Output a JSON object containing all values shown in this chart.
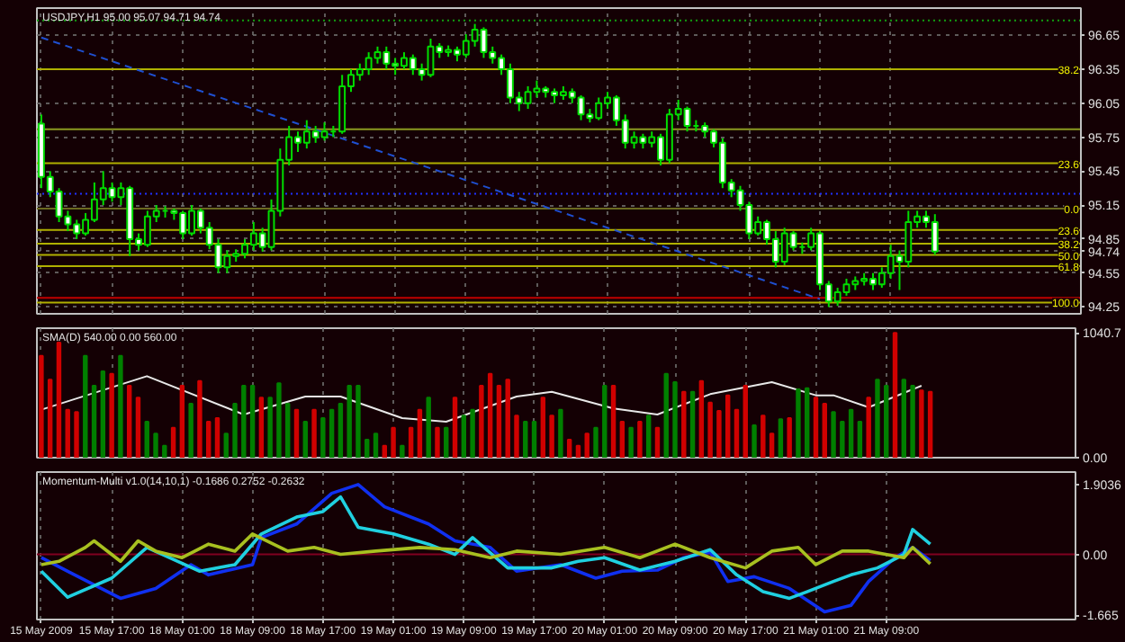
{
  "chart_data": [
    {
      "type": "candlestick",
      "title": "USDJPY,H1  95.00 95.07 94.71 94.74",
      "tick_labels": "y",
      "grid": true,
      "categories": [
        null,
        null,
        null,
        null,
        null,
        null,
        null,
        null,
        null,
        null,
        null,
        null,
        null,
        null,
        null,
        null,
        null,
        null,
        null,
        null,
        null,
        null,
        null,
        null,
        null,
        null,
        null,
        null,
        null,
        null,
        null,
        null,
        null,
        null,
        null,
        null,
        null,
        null,
        null,
        null,
        null,
        null,
        null,
        null,
        null,
        null,
        null,
        null,
        null,
        null,
        null,
        null,
        null,
        null,
        null,
        null,
        null,
        null,
        null,
        null,
        null,
        null,
        null,
        null,
        null,
        null,
        null,
        null,
        null,
        null,
        null,
        null,
        null,
        null,
        null,
        null,
        null,
        null,
        null,
        null,
        null,
        null,
        null,
        null,
        null,
        null,
        null,
        null,
        null,
        null,
        null,
        null,
        null,
        null,
        null,
        null,
        null,
        null,
        null,
        null,
        null,
        null,
        null,
        null,
        null,
        null,
        null,
        null,
        null,
        null,
        null,
        null,
        null,
        null,
        null,
        null,
        null,
        null
      ],
      "ohlc": [
        [
          95.87,
          95.95,
          95.3,
          95.4
        ],
        [
          95.4,
          95.45,
          95.22,
          95.27
        ],
        [
          95.27,
          95.3,
          95.0,
          95.05
        ],
        [
          95.05,
          95.1,
          94.92,
          94.98
        ],
        [
          94.98,
          95.02,
          94.85,
          94.9
        ],
        [
          94.9,
          95.08,
          94.88,
          95.02
        ],
        [
          95.02,
          95.35,
          95.0,
          95.2
        ],
        [
          95.2,
          95.45,
          95.15,
          95.3
        ],
        [
          95.3,
          95.35,
          95.18,
          95.22
        ],
        [
          95.22,
          95.35,
          95.15,
          95.3
        ],
        [
          95.3,
          95.32,
          94.7,
          94.85
        ],
        [
          94.85,
          94.9,
          94.75,
          94.8
        ],
        [
          94.8,
          95.1,
          94.78,
          95.05
        ],
        [
          95.05,
          95.15,
          95.0,
          95.1
        ],
        [
          95.1,
          95.14,
          95.04,
          95.1
        ],
        [
          95.1,
          95.12,
          95.02,
          95.08
        ],
        [
          95.08,
          95.1,
          94.85,
          94.9
        ],
        [
          94.9,
          95.15,
          94.88,
          95.1
        ],
        [
          95.1,
          95.12,
          94.9,
          94.95
        ],
        [
          94.95,
          95.0,
          94.76,
          94.8
        ],
        [
          94.8,
          94.85,
          94.55,
          94.6
        ],
        [
          94.6,
          94.75,
          94.55,
          94.7
        ],
        [
          94.7,
          94.76,
          94.65,
          94.72
        ],
        [
          94.72,
          94.85,
          94.68,
          94.8
        ],
        [
          94.8,
          95.0,
          94.75,
          94.9
        ],
        [
          94.9,
          94.95,
          94.74,
          94.78
        ],
        [
          94.78,
          95.2,
          94.75,
          95.1
        ],
        [
          95.1,
          95.65,
          95.05,
          95.55
        ],
        [
          95.55,
          95.85,
          95.5,
          95.75
        ],
        [
          95.75,
          95.8,
          95.62,
          95.7
        ],
        [
          95.7,
          95.9,
          95.65,
          95.8
        ],
        [
          95.8,
          95.85,
          95.7,
          95.75
        ],
        [
          95.75,
          95.88,
          95.72,
          95.8
        ],
        [
          95.8,
          95.85,
          95.75,
          95.8
        ],
        [
          95.8,
          96.3,
          95.78,
          96.2
        ],
        [
          96.2,
          96.35,
          96.15,
          96.3
        ],
        [
          96.3,
          96.4,
          96.25,
          96.35
        ],
        [
          96.35,
          96.5,
          96.3,
          96.45
        ],
        [
          96.45,
          96.55,
          96.4,
          96.5
        ],
        [
          96.5,
          96.55,
          96.35,
          96.4
        ],
        [
          96.4,
          96.45,
          96.3,
          96.38
        ],
        [
          96.38,
          96.5,
          96.35,
          96.45
        ],
        [
          96.45,
          96.48,
          96.3,
          96.35
        ],
        [
          96.35,
          96.4,
          96.25,
          96.3
        ],
        [
          96.3,
          96.62,
          96.28,
          96.55
        ],
        [
          96.55,
          96.58,
          96.45,
          96.5
        ],
        [
          96.5,
          96.56,
          96.46,
          96.52
        ],
        [
          96.52,
          96.55,
          96.42,
          96.48
        ],
        [
          96.48,
          96.66,
          96.45,
          96.6
        ],
        [
          96.6,
          96.75,
          96.55,
          96.7
        ],
        [
          96.7,
          96.72,
          96.45,
          96.5
        ],
        [
          96.5,
          96.55,
          96.4,
          96.45
        ],
        [
          96.45,
          96.48,
          96.3,
          96.35
        ],
        [
          96.35,
          96.4,
          96.05,
          96.1
        ],
        [
          96.1,
          96.15,
          95.98,
          96.05
        ],
        [
          96.05,
          96.2,
          96.0,
          96.15
        ],
        [
          96.15,
          96.25,
          96.1,
          96.18
        ],
        [
          96.18,
          96.2,
          96.1,
          96.15
        ],
        [
          96.15,
          96.18,
          96.05,
          96.12
        ],
        [
          96.12,
          96.2,
          96.08,
          96.15
        ],
        [
          96.15,
          96.18,
          96.05,
          96.1
        ],
        [
          96.1,
          96.12,
          95.9,
          95.95
        ],
        [
          95.95,
          96.0,
          95.88,
          95.92
        ],
        [
          95.92,
          96.1,
          95.9,
          96.05
        ],
        [
          96.05,
          96.15,
          96.0,
          96.1
        ],
        [
          96.1,
          96.12,
          95.85,
          95.9
        ],
        [
          95.9,
          95.95,
          95.65,
          95.7
        ],
        [
          95.7,
          95.8,
          95.65,
          95.75
        ],
        [
          95.75,
          95.78,
          95.65,
          95.7
        ],
        [
          95.7,
          95.8,
          95.66,
          95.75
        ],
        [
          95.75,
          95.78,
          95.5,
          95.55
        ],
        [
          95.55,
          96.0,
          95.52,
          95.95
        ],
        [
          95.95,
          96.08,
          95.9,
          96.0
        ],
        [
          96.0,
          96.02,
          95.8,
          95.85
        ],
        [
          95.85,
          95.9,
          95.8,
          95.85
        ],
        [
          95.85,
          95.88,
          95.75,
          95.8
        ],
        [
          95.8,
          95.82,
          95.66,
          95.7
        ],
        [
          95.7,
          95.74,
          95.3,
          95.35
        ],
        [
          95.35,
          95.38,
          95.22,
          95.28
        ],
        [
          95.28,
          95.32,
          95.1,
          95.15
        ],
        [
          95.15,
          95.18,
          94.85,
          94.9
        ],
        [
          94.9,
          95.05,
          94.88,
          95.0
        ],
        [
          95.0,
          95.02,
          94.8,
          94.85
        ],
        [
          94.85,
          94.92,
          94.6,
          94.65
        ],
        [
          94.65,
          94.95,
          94.62,
          94.9
        ],
        [
          94.9,
          94.92,
          94.75,
          94.78
        ],
        [
          94.78,
          94.82,
          94.72,
          94.78
        ],
        [
          94.78,
          94.95,
          94.75,
          94.9
        ],
        [
          94.9,
          94.92,
          94.4,
          94.45
        ],
        [
          94.45,
          94.48,
          94.25,
          94.3
        ],
        [
          94.3,
          94.42,
          94.26,
          94.38
        ],
        [
          94.38,
          94.5,
          94.35,
          94.45
        ],
        [
          94.45,
          94.52,
          94.4,
          94.48
        ],
        [
          94.48,
          94.55,
          94.44,
          94.5
        ],
        [
          94.5,
          94.55,
          94.4,
          94.45
        ],
        [
          94.45,
          94.6,
          94.42,
          94.55
        ],
        [
          94.55,
          94.8,
          94.5,
          94.7
        ],
        [
          94.7,
          94.75,
          94.4,
          94.65
        ],
        [
          94.65,
          95.1,
          94.6,
          95.0
        ],
        [
          95.0,
          95.1,
          94.95,
          95.05
        ],
        [
          95.05,
          95.1,
          94.95,
          95.0
        ],
        [
          95.0,
          95.07,
          94.71,
          94.74
        ],
        null,
        null,
        null,
        null,
        null,
        null,
        null,
        null,
        null,
        null,
        null,
        null,
        null,
        null,
        null,
        null
      ],
      "series": [
        {
          "type": "line",
          "values": [
            96.63,
            null,
            null,
            null,
            null,
            null,
            null,
            null,
            null,
            null,
            null,
            null,
            null,
            null,
            null,
            null,
            null,
            null,
            null,
            null,
            null,
            null,
            null,
            null,
            null,
            null,
            null,
            null,
            null,
            null,
            null,
            null,
            null,
            null,
            null,
            null,
            null,
            null,
            null,
            null,
            null,
            null,
            null,
            null,
            null,
            null,
            null,
            null,
            null,
            null,
            null,
            null,
            null,
            null,
            null,
            null,
            null,
            null,
            null,
            null,
            null,
            null,
            null,
            null,
            null,
            null,
            null,
            null,
            null,
            null,
            null,
            null,
            null,
            null,
            null,
            null,
            null,
            null,
            null,
            null,
            null,
            null,
            null,
            null,
            null,
            null,
            null,
            null,
            94.32,
            null,
            null,
            null,
            null,
            null,
            null,
            null,
            null,
            null,
            null,
            null,
            null,
            null,
            null,
            null,
            null,
            null,
            null,
            null,
            null,
            null,
            null,
            null,
            null,
            null,
            null,
            null,
            null,
            null
          ],
          "color": "#1f4fd0",
          "line_style": "dashed"
        }
      ],
      "ref_lines": [
        {
          "axis": "y",
          "value": 96.78,
          "color": "#10a010",
          "line_style": "dotted"
        },
        {
          "axis": "y",
          "value": 96.35,
          "color": "#b0b000"
        },
        {
          "axis": "y",
          "value": 95.82,
          "color": "#8a9a20"
        },
        {
          "axis": "y",
          "value": 95.52,
          "color": "#b0b000"
        },
        {
          "axis": "y",
          "value": 95.25,
          "color": "#2030ff",
          "line_style": "dotted"
        },
        {
          "axis": "y",
          "value": 95.12,
          "color": "#6a6a20"
        },
        {
          "axis": "y",
          "value": 94.93,
          "color": "#b0b000"
        },
        {
          "axis": "y",
          "value": 94.81,
          "color": "#b0b000"
        },
        {
          "axis": "y",
          "value": 94.71,
          "color": "#b0b000"
        },
        {
          "axis": "y",
          "value": 94.61,
          "color": "#b0b000"
        },
        {
          "axis": "y",
          "value": 94.33,
          "color": "#c00000"
        },
        {
          "axis": "y",
          "value": 94.29,
          "color": "#b0b000"
        }
      ],
      "annotations": [
        {
          "text": "38.2",
          "y": 96.35
        },
        {
          "text": "23.6",
          "y": 95.52
        },
        {
          "text": "0.0",
          "y": 95.12
        },
        {
          "text": "23.6",
          "y": 94.93
        },
        {
          "text": "38.2",
          "y": 94.81
        },
        {
          "text": "50.0",
          "y": 94.71
        },
        {
          "text": "61.8",
          "y": 94.61
        },
        {
          "text": "100.0",
          "y": 94.29
        }
      ],
      "ylim": [
        94.19,
        96.89
      ],
      "yticks": [
        96.65,
        96.35,
        96.05,
        95.75,
        95.45,
        95.15,
        94.85,
        94.74,
        94.55,
        94.25
      ]
    },
    {
      "type": "bar",
      "title": "SMA(D) 540.00 0.00 560.00",
      "tick_labels": "y",
      "grid": "x",
      "categories": [
        null,
        null,
        null,
        null,
        null,
        null,
        null,
        null,
        null,
        null,
        null,
        null,
        null,
        null,
        null,
        null,
        null,
        null,
        null,
        null,
        null,
        null,
        null,
        null,
        null,
        null,
        null,
        null,
        null,
        null,
        null,
        null,
        null,
        null,
        null,
        null,
        null,
        null,
        null,
        null,
        null,
        null,
        null,
        null,
        null,
        null,
        null,
        null,
        null,
        null,
        null,
        null,
        null,
        null,
        null,
        null,
        null,
        null,
        null,
        null,
        null,
        null,
        null,
        null,
        null,
        null,
        null,
        null,
        null,
        null,
        null,
        null,
        null,
        null,
        null,
        null,
        null,
        null,
        null,
        null,
        null,
        null,
        null,
        null,
        null,
        null,
        null,
        null,
        null,
        null,
        null,
        null,
        null,
        null,
        null,
        null,
        null,
        null,
        null,
        null,
        null,
        null,
        null,
        null,
        null,
        null,
        null,
        null,
        null,
        null,
        null,
        null,
        null,
        null,
        null,
        null,
        null,
        null
      ],
      "values": [
        850,
        650,
        960,
        400,
        380,
        850,
        600,
        720,
        700,
        850,
        600,
        500,
        300,
        200,
        100,
        250,
        600,
        450,
        640,
        300,
        330,
        200,
        450,
        600,
        600,
        500,
        500,
        620,
        450,
        400,
        300,
        400,
        330,
        400,
        450,
        600,
        600,
        150,
        200,
        100,
        250,
        100,
        250,
        400,
        500,
        250,
        250,
        500,
        350,
        400,
        600,
        700,
        600,
        650,
        350,
        300,
        300,
        500,
        350,
        400,
        150,
        100,
        200,
        250,
        600,
        600,
        300,
        250,
        300,
        350,
        250,
        700,
        630,
        550,
        550,
        640,
        460,
        390,
        520,
        400,
        600,
        270,
        350,
        200,
        320,
        330,
        570,
        580,
        500,
        450,
        380,
        300,
        400,
        300,
        500,
        650,
        600,
        1040,
        650,
        600,
        560,
        550,
        null,
        null,
        null,
        null,
        null,
        null,
        null,
        null,
        null,
        null,
        null,
        null,
        null,
        null,
        null,
        null
      ],
      "colors": [
        "#d00000",
        "#d00000",
        "#d00000",
        "#d00000",
        "#d00000",
        "#008000",
        "#008000",
        "#008000",
        "#d00000",
        "#008000",
        "#d00000",
        "#d00000",
        "#008000",
        "#008000",
        "#008000",
        "#d00000",
        "#d00000",
        "#008000",
        "#d00000",
        "#d00000",
        "#d00000",
        "#008000",
        "#008000",
        "#008000",
        "#008000",
        "#d00000",
        "#008000",
        "#008000",
        "#008000",
        "#d00000",
        "#008000",
        "#d00000",
        "#008000",
        "#008000",
        "#008000",
        "#008000",
        "#008000",
        "#008000",
        "#008000",
        "#d00000",
        "#d00000",
        "#008000",
        "#d00000",
        "#d00000",
        "#008000",
        "#d00000",
        "#008000",
        "#d00000",
        "#008000",
        "#008000",
        "#d00000",
        "#d00000",
        "#d00000",
        "#d00000",
        "#d00000",
        "#008000",
        "#008000",
        "#d00000",
        "#d00000",
        "#008000",
        "#d00000",
        "#d00000",
        "#d00000",
        "#008000",
        "#008000",
        "#d00000",
        "#d00000",
        "#008000",
        "#d00000",
        "#008000",
        "#d00000",
        "#008000",
        "#008000",
        "#d00000",
        "#008000",
        "#d00000",
        "#d00000",
        "#d00000",
        "#d00000",
        "#d00000",
        "#d00000",
        "#008000",
        "#d00000",
        "#d00000",
        "#008000",
        "#d00000",
        "#008000",
        "#008000",
        "#d00000",
        "#d00000",
        "#008000",
        "#008000",
        "#008000",
        "#008000",
        "#d00000",
        "#008000",
        "#008000",
        "#d00000",
        "#008000",
        "#008000",
        "#d00000",
        "#d00000",
        null,
        null,
        null,
        null,
        null,
        null,
        null,
        null,
        null,
        null,
        null,
        null,
        null,
        null,
        null,
        null
      ],
      "series": [
        {
          "type": "line",
          "values": [
            400,
            null,
            null,
            null,
            null,
            null,
            null,
            null,
            null,
            null,
            null,
            null,
            680,
            null,
            null,
            null,
            null,
            null,
            null,
            null,
            null,
            null,
            null,
            360,
            null,
            null,
            null,
            null,
            null,
            null,
            510,
            null,
            null,
            null,
            510,
            null,
            null,
            null,
            null,
            null,
            null,
            330,
            null,
            null,
            null,
            null,
            300,
            null,
            null,
            null,
            null,
            null,
            null,
            null,
            510,
            null,
            null,
            null,
            550,
            null,
            null,
            null,
            null,
            null,
            null,
            410,
            null,
            null,
            null,
            null,
            360,
            null,
            null,
            null,
            null,
            null,
            530,
            null,
            null,
            null,
            null,
            null,
            null,
            630,
            null,
            null,
            null,
            null,
            520,
            null,
            520,
            null,
            null,
            null,
            420,
            null,
            null,
            null,
            null,
            null,
            600,
            null,
            null,
            null,
            null,
            null,
            null,
            null,
            null,
            null,
            null,
            null,
            null,
            null,
            null,
            null,
            null,
            null
          ],
          "color": "#e8e8e8"
        }
      ],
      "ylim": [
        0,
        1080
      ],
      "yticks": [
        {
          "value": 1040.7,
          "label": "1040.7"
        },
        {
          "value": 0,
          "label": "0.00"
        }
      ]
    },
    {
      "type": "line",
      "title": "Momentum-Multi v1.0(14,10,1) -0.1686 0.2752 -0.2632",
      "grid": "x",
      "categories": [
        "15 May 2009",
        null,
        null,
        null,
        null,
        null,
        null,
        null,
        "15 May 17:00",
        null,
        null,
        null,
        null,
        null,
        null,
        null,
        "18 May 01:00",
        null,
        null,
        null,
        null,
        null,
        null,
        null,
        "18 May 09:00",
        null,
        null,
        null,
        null,
        null,
        null,
        null,
        "18 May 17:00",
        null,
        null,
        null,
        null,
        null,
        null,
        null,
        "19 May 01:00",
        null,
        null,
        null,
        null,
        null,
        null,
        null,
        "19 May 09:00",
        null,
        null,
        null,
        null,
        null,
        null,
        null,
        "19 May 17:00",
        null,
        null,
        null,
        null,
        null,
        null,
        null,
        "20 May 01:00",
        null,
        null,
        null,
        null,
        null,
        null,
        null,
        "20 May 09:00",
        null,
        null,
        null,
        null,
        null,
        null,
        null,
        "20 May 17:00",
        null,
        null,
        null,
        null,
        null,
        null,
        null,
        "21 May 01:00",
        null,
        null,
        null,
        null,
        null,
        null,
        null,
        "21 May 09:00",
        null,
        null,
        null,
        null,
        null,
        null,
        null,
        null,
        null,
        null,
        null,
        null,
        null,
        null,
        null,
        null,
        null,
        null,
        null,
        null,
        null
      ],
      "series": [
        {
          "values": [
            -0.09,
            null,
            null,
            -0.46,
            null,
            null,
            null,
            null,
            null,
            -1.2,
            null,
            null,
            null,
            -0.93,
            null,
            null,
            null,
            -0.28,
            null,
            -0.56,
            null,
            null,
            null,
            null,
            -0.28,
            0.46,
            null,
            null,
            null,
            0.83,
            null,
            null,
            null,
            1.67,
            null,
            null,
            1.91,
            null,
            null,
            1.3,
            null,
            null,
            null,
            null,
            0.83,
            null,
            null,
            0.37,
            null,
            null,
            null,
            0.19,
            null,
            null,
            -0.46,
            null,
            null,
            null,
            null,
            -0.28,
            null,
            null,
            null,
            -0.65,
            null,
            null,
            -0.46,
            null,
            null,
            null,
            -0.43,
            null,
            null,
            -0.09,
            null,
            null,
            0.06,
            null,
            -0.74,
            null,
            null,
            -0.61,
            null,
            null,
            null,
            -0.93,
            null,
            null,
            null,
            -1.57,
            null,
            null,
            -1.39,
            null,
            -0.74,
            null,
            null,
            -0.09,
            null,
            0.19,
            null,
            -0.17,
            null,
            null,
            null,
            null,
            null,
            null,
            null,
            null,
            null,
            null,
            null,
            null,
            null,
            null,
            null,
            null
          ],
          "color": "#1030f0"
        },
        {
          "values": [
            -0.46,
            null,
            null,
            -1.17,
            null,
            null,
            null,
            null,
            -0.65,
            null,
            null,
            null,
            0.19,
            null,
            null,
            null,
            null,
            null,
            -0.46,
            null,
            null,
            null,
            -0.28,
            null,
            null,
            0.56,
            null,
            null,
            null,
            1.02,
            null,
            null,
            1.17,
            null,
            1.57,
            null,
            0.74,
            null,
            null,
            null,
            0.56,
            null,
            null,
            null,
            0.28,
            null,
            null,
            0.0,
            null,
            0.46,
            null,
            null,
            null,
            -0.37,
            null,
            null,
            null,
            null,
            -0.37,
            null,
            null,
            -0.19,
            null,
            null,
            -0.09,
            null,
            null,
            null,
            -0.43,
            null,
            null,
            null,
            -0.19,
            null,
            null,
            null,
            0.13,
            null,
            null,
            -0.56,
            null,
            null,
            -1.02,
            null,
            null,
            -1.2,
            null,
            -1.02,
            null,
            null,
            -0.74,
            null,
            -0.56,
            null,
            null,
            -0.37,
            null,
            null,
            0.0,
            0.68,
            null,
            0.28,
            null,
            null,
            null,
            null,
            null,
            null,
            null,
            null,
            null,
            null,
            null,
            null,
            null,
            null,
            null,
            null
          ],
          "color": "#20d0e0"
        },
        {
          "values": [
            -0.28,
            null,
            -0.19,
            null,
            null,
            0.19,
            0.37,
            null,
            null,
            -0.19,
            null,
            0.37,
            null,
            0.09,
            null,
            null,
            -0.09,
            null,
            null,
            0.28,
            null,
            null,
            0.09,
            null,
            0.56,
            null,
            null,
            null,
            0.09,
            null,
            null,
            0.19,
            null,
            null,
            0.0,
            null,
            null,
            null,
            0.09,
            null,
            null,
            null,
            null,
            0.19,
            null,
            null,
            null,
            0.13,
            null,
            null,
            null,
            -0.09,
            null,
            null,
            0.09,
            null,
            null,
            null,
            null,
            0.0,
            null,
            null,
            null,
            null,
            0.19,
            null,
            null,
            null,
            -0.09,
            null,
            null,
            null,
            0.28,
            null,
            null,
            null,
            -0.09,
            null,
            null,
            null,
            -0.37,
            null,
            null,
            0.09,
            null,
            null,
            0.19,
            null,
            -0.28,
            null,
            null,
            0.09,
            null,
            null,
            0.09,
            null,
            null,
            null,
            -0.09,
            0.19,
            null,
            -0.26,
            null,
            null,
            null,
            null,
            null,
            null,
            null,
            null,
            null,
            null,
            null,
            null,
            null,
            null,
            null,
            null
          ],
          "color": "#a8c020"
        }
      ],
      "ref_lines": [
        {
          "axis": "y",
          "value": 0,
          "color": "#800020"
        }
      ],
      "ylim": [
        -1.78,
        2.25
      ],
      "yticks": [
        {
          "value": 1.9036,
          "label": "1.9036"
        },
        {
          "value": 0,
          "label": "0.00"
        },
        {
          "value": -1.665,
          "label": "-1.665"
        }
      ]
    }
  ]
}
